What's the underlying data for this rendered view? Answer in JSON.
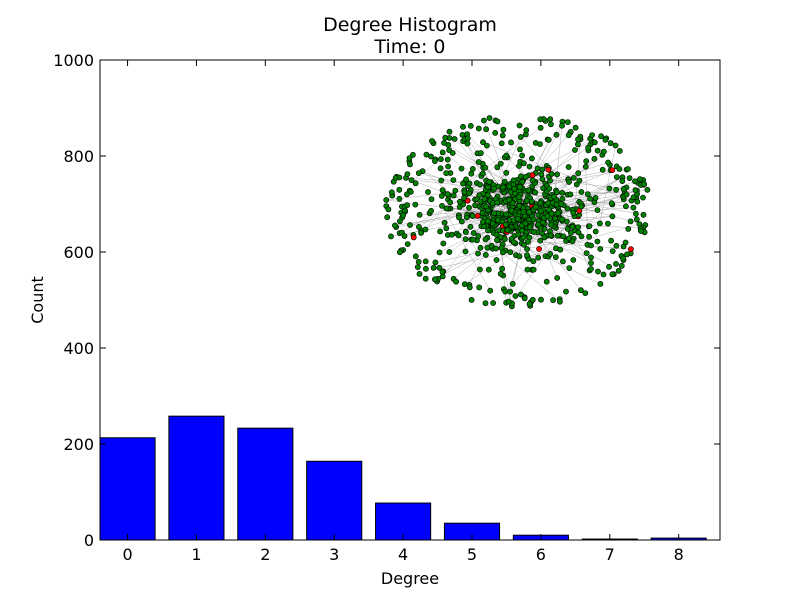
{
  "chart_data": {
    "type": "bar",
    "title": "Degree Histogram",
    "subtitle": "Time: 0",
    "xlabel": "Degree",
    "ylabel": "Count",
    "categories": [
      "0",
      "1",
      "2",
      "3",
      "4",
      "5",
      "6",
      "7",
      "8"
    ],
    "values": [
      213,
      258,
      233,
      164,
      77,
      35,
      10,
      2,
      4
    ],
    "ylim": [
      0,
      1000
    ],
    "yticks": [
      "0",
      "200",
      "400",
      "600",
      "800",
      "1000"
    ],
    "grid": false,
    "bar_color": "#0000ff",
    "inset": {
      "type": "network-graph",
      "node_color": "#008000",
      "highlight_color": "#ff0000",
      "edge_color": "#7f7f7f"
    }
  }
}
